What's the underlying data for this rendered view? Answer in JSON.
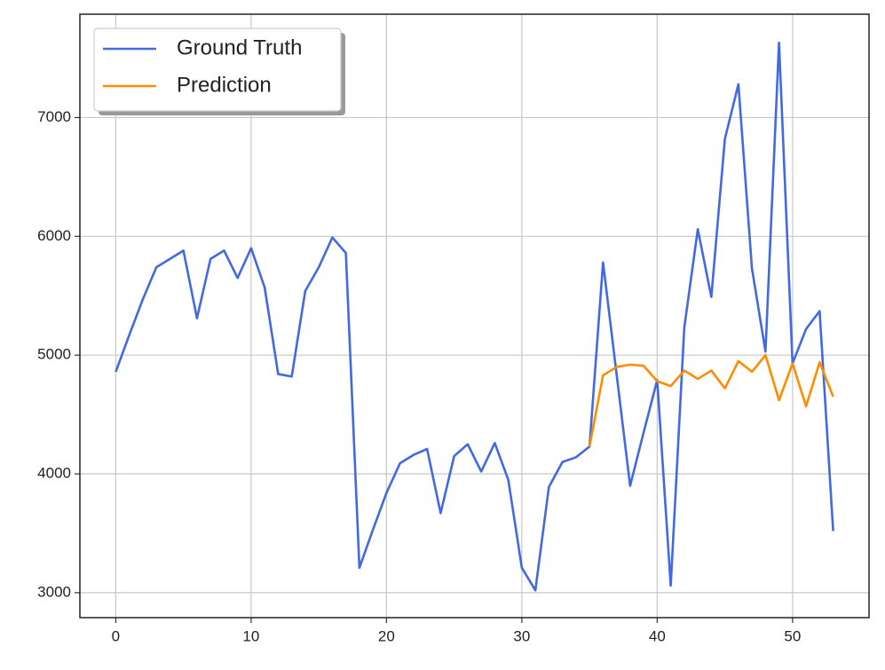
{
  "chart_data": {
    "type": "line",
    "x": [
      0,
      1,
      2,
      3,
      4,
      5,
      6,
      7,
      8,
      9,
      10,
      11,
      12,
      13,
      14,
      15,
      16,
      17,
      18,
      19,
      20,
      21,
      22,
      23,
      24,
      25,
      26,
      27,
      28,
      29,
      30,
      31,
      32,
      33,
      34,
      35,
      36,
      37,
      38,
      39,
      40,
      41,
      42,
      43,
      44,
      45,
      46,
      47,
      48,
      49,
      50,
      51,
      52,
      53
    ],
    "series": [
      {
        "name": "Ground Truth",
        "color": "#4169e1",
        "values": [
          4860,
          5170,
          5470,
          5740,
          5810,
          5880,
          5310,
          5810,
          5880,
          5650,
          5900,
          5570,
          4840,
          4820,
          5540,
          5740,
          5990,
          5860,
          3210,
          3530,
          3840,
          4090,
          4160,
          4210,
          3670,
          4150,
          4250,
          4020,
          4260,
          3950,
          3210,
          3020,
          3890,
          4100,
          4140,
          4230,
          5780,
          4840,
          3900,
          4350,
          4790,
          3060,
          5230,
          6060,
          5490,
          6820,
          7280,
          5730,
          5030,
          7630,
          4930,
          5220,
          5370,
          3520
        ]
      },
      {
        "name": "Prediction",
        "color": "#ff8c00",
        "values": [
          null,
          null,
          null,
          null,
          null,
          null,
          null,
          null,
          null,
          null,
          null,
          null,
          null,
          null,
          null,
          null,
          null,
          null,
          null,
          null,
          null,
          null,
          null,
          null,
          null,
          null,
          null,
          null,
          null,
          null,
          null,
          null,
          null,
          null,
          null,
          4230,
          4830,
          4900,
          4920,
          4910,
          4780,
          4740,
          4870,
          4800,
          4870,
          4720,
          4950,
          4860,
          5000,
          4620,
          4930,
          4570,
          4940,
          4650
        ]
      }
    ],
    "xlim": [
      -2.65,
      55.65
    ],
    "ylim": [
      2790,
      7870
    ],
    "xticks": [
      0,
      10,
      20,
      30,
      40,
      50
    ],
    "yticks": [
      3000,
      4000,
      5000,
      6000,
      7000
    ],
    "grid": true,
    "legend": "upper left"
  }
}
